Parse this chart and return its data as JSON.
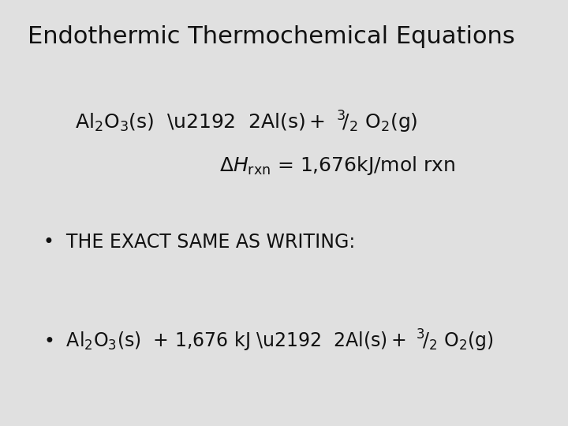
{
  "title": "Endothermic Thermochemical Equations",
  "bg_color": "#e0e0e0",
  "text_color": "#111111",
  "title_fontsize": 22,
  "body_fontsize": 17
}
